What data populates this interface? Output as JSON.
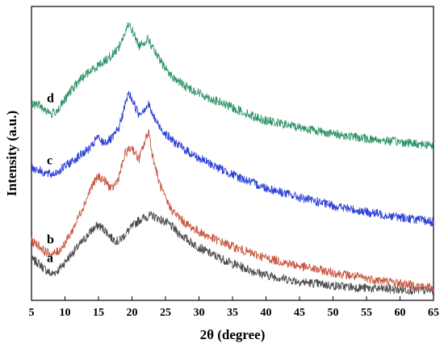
{
  "chart_data": {
    "type": "line",
    "title": "",
    "xlabel": "2θ (degree)",
    "ylabel": "Intensity (a.u.)",
    "xlim": [
      5,
      65
    ],
    "x_ticks": [
      5,
      10,
      15,
      20,
      25,
      30,
      35,
      40,
      45,
      50,
      55,
      60,
      65
    ],
    "y_ticks_shown": false,
    "grid": false,
    "legend": "inline labels on left",
    "series": [
      {
        "name": "a",
        "color": "#4a4a4a",
        "points": [
          [
            5,
            0.4
          ],
          [
            6,
            0.36
          ],
          [
            7,
            0.28
          ],
          [
            8,
            0.22
          ],
          [
            9,
            0.27
          ],
          [
            10,
            0.37
          ],
          [
            11,
            0.47
          ],
          [
            12,
            0.56
          ],
          [
            13,
            0.66
          ],
          [
            14,
            0.76
          ],
          [
            15,
            0.82
          ],
          [
            16,
            0.76
          ],
          [
            17,
            0.66
          ],
          [
            18,
            0.62
          ],
          [
            19,
            0.71
          ],
          [
            20,
            0.8
          ],
          [
            21,
            0.88
          ],
          [
            22,
            0.92
          ],
          [
            23,
            0.94
          ],
          [
            24,
            0.9
          ],
          [
            25,
            0.86
          ],
          [
            26,
            0.8
          ],
          [
            27,
            0.72
          ],
          [
            28,
            0.66
          ],
          [
            29,
            0.6
          ],
          [
            30,
            0.55
          ],
          [
            32,
            0.46
          ],
          [
            35,
            0.35
          ],
          [
            38,
            0.26
          ],
          [
            40,
            0.21
          ],
          [
            45,
            0.13
          ],
          [
            50,
            0.08
          ],
          [
            55,
            0.05
          ],
          [
            60,
            0.03
          ],
          [
            65,
            0.02
          ]
        ]
      },
      {
        "name": "b",
        "color": "#c8553d",
        "points": [
          [
            5,
            0.62
          ],
          [
            6,
            0.58
          ],
          [
            7,
            0.5
          ],
          [
            8,
            0.46
          ],
          [
            9,
            0.5
          ],
          [
            10,
            0.6
          ],
          [
            11,
            0.74
          ],
          [
            12,
            0.92
          ],
          [
            13,
            1.1
          ],
          [
            14,
            1.3
          ],
          [
            15,
            1.42
          ],
          [
            16,
            1.36
          ],
          [
            17,
            1.26
          ],
          [
            18,
            1.4
          ],
          [
            19,
            1.7
          ],
          [
            20,
            1.78
          ],
          [
            21,
            1.62
          ],
          [
            22,
            1.86
          ],
          [
            22.5,
            1.98
          ],
          [
            23,
            1.7
          ],
          [
            24,
            1.36
          ],
          [
            25,
            1.14
          ],
          [
            26,
            1.0
          ],
          [
            28,
            0.84
          ],
          [
            30,
            0.74
          ],
          [
            32,
            0.66
          ],
          [
            35,
            0.56
          ],
          [
            38,
            0.47
          ],
          [
            40,
            0.42
          ],
          [
            45,
            0.32
          ],
          [
            50,
            0.24
          ],
          [
            55,
            0.17
          ],
          [
            60,
            0.11
          ],
          [
            65,
            0.05
          ]
        ]
      },
      {
        "name": "c",
        "color": "#2b3fd6",
        "points": [
          [
            5,
            1.52
          ],
          [
            6,
            1.5
          ],
          [
            7,
            1.46
          ],
          [
            8,
            1.44
          ],
          [
            9,
            1.48
          ],
          [
            10,
            1.54
          ],
          [
            11,
            1.6
          ],
          [
            12,
            1.66
          ],
          [
            13,
            1.72
          ],
          [
            14,
            1.78
          ],
          [
            14.8,
            1.9
          ],
          [
            15.5,
            1.84
          ],
          [
            16,
            1.84
          ],
          [
            17,
            1.88
          ],
          [
            18,
            2.0
          ],
          [
            19,
            2.3
          ],
          [
            19.5,
            2.44
          ],
          [
            20,
            2.36
          ],
          [
            21,
            2.18
          ],
          [
            22,
            2.26
          ],
          [
            22.5,
            2.3
          ],
          [
            23,
            2.18
          ],
          [
            24,
            2.04
          ],
          [
            25,
            1.94
          ],
          [
            26,
            1.86
          ],
          [
            28,
            1.74
          ],
          [
            30,
            1.64
          ],
          [
            32,
            1.56
          ],
          [
            35,
            1.44
          ],
          [
            38,
            1.34
          ],
          [
            40,
            1.28
          ],
          [
            45,
            1.16
          ],
          [
            50,
            1.06
          ],
          [
            55,
            0.98
          ],
          [
            60,
            0.92
          ],
          [
            65,
            0.86
          ]
        ]
      },
      {
        "name": "d",
        "color": "#2e9467",
        "points": [
          [
            5,
            2.3
          ],
          [
            6,
            2.3
          ],
          [
            7,
            2.24
          ],
          [
            8,
            2.18
          ],
          [
            9,
            2.24
          ],
          [
            10,
            2.36
          ],
          [
            11,
            2.48
          ],
          [
            12,
            2.58
          ],
          [
            13,
            2.66
          ],
          [
            14,
            2.72
          ],
          [
            15,
            2.78
          ],
          [
            16,
            2.84
          ],
          [
            17,
            2.9
          ],
          [
            18,
            3.0
          ],
          [
            19,
            3.18
          ],
          [
            19.5,
            3.28
          ],
          [
            20,
            3.22
          ],
          [
            21,
            3.02
          ],
          [
            22,
            3.08
          ],
          [
            22.5,
            3.1
          ],
          [
            23,
            3.0
          ],
          [
            24,
            2.86
          ],
          [
            25,
            2.74
          ],
          [
            26,
            2.64
          ],
          [
            28,
            2.52
          ],
          [
            30,
            2.44
          ],
          [
            32,
            2.36
          ],
          [
            35,
            2.26
          ],
          [
            38,
            2.16
          ],
          [
            40,
            2.1
          ],
          [
            45,
            2.02
          ],
          [
            50,
            1.94
          ],
          [
            55,
            1.88
          ],
          [
            60,
            1.84
          ],
          [
            65,
            1.8
          ]
        ]
      }
    ]
  }
}
